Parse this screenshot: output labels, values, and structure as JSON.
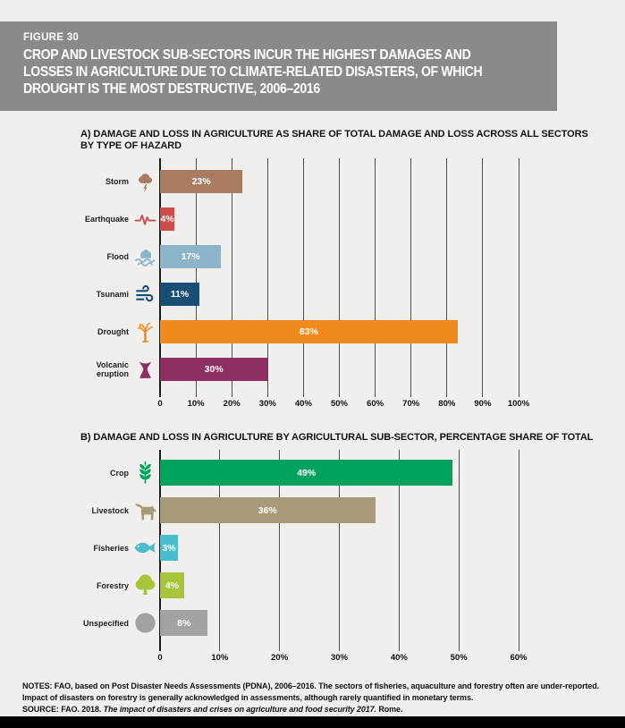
{
  "page": {
    "background": "#f0efee",
    "bottom_bar_color": "#000000"
  },
  "header": {
    "figure_label": "FIGURE 30",
    "title": "CROP AND LIVESTOCK SUB-SECTORS INCUR THE HIGHEST DAMAGES AND LOSSES IN AGRICULTURE DUE TO CLIMATE-RELATED DISASTERS, OF WHICH DROUGHT IS THE MOST DESTRUCTIVE, 2006–2016",
    "background": "#8a8a8a",
    "text_color": "#ffffff"
  },
  "chart_data": [
    {
      "type": "bar",
      "orientation": "horizontal",
      "title": "A) DAMAGE AND LOSS IN AGRICULTURE AS SHARE OF TOTAL DAMAGE AND LOSS ACROSS ALL SECTORS BY TYPE OF HAZARD",
      "title_lines": [
        "A) DAMAGE AND LOSS IN AGRICULTURE AS SHARE OF TOTAL DAMAGE AND LOSS ACROSS ALL SECTORS",
        "BY TYPE OF HAZARD"
      ],
      "categories": [
        "Storm",
        "Earthquake",
        "Flood",
        "Tsunami",
        "Drought",
        "Volcanic eruption"
      ],
      "values": [
        23,
        4,
        17,
        11,
        83,
        30
      ],
      "value_labels": [
        "23%",
        "4%",
        "17%",
        "11%",
        "83%",
        "30%"
      ],
      "colors": [
        "#a97c61",
        "#cd4b49",
        "#8bb4c9",
        "#1a4f75",
        "#f18a1d",
        "#8d2f63"
      ],
      "icons": [
        "storm-icon",
        "earthquake-icon",
        "flood-icon",
        "tsunami-icon",
        "drought-icon",
        "volcano-icon"
      ],
      "xlim": [
        0,
        100
      ],
      "ticks": [
        "0",
        "10%",
        "20%",
        "30%",
        "40%",
        "50%",
        "60%",
        "70%",
        "80%",
        "90%",
        "100%"
      ],
      "grid": "vertical gridlines at every 10%, zero line emphasized"
    },
    {
      "type": "bar",
      "orientation": "horizontal",
      "title": "B) DAMAGE AND LOSS IN AGRICULTURE BY AGRICULTURAL SUB-SECTOR, PERCENTAGE SHARE OF TOTAL",
      "title_lines": [
        "B) DAMAGE AND LOSS IN AGRICULTURE BY AGRICULTURAL SUB-SECTOR, PERCENTAGE SHARE OF TOTAL"
      ],
      "categories": [
        "Crop",
        "Livestock",
        "Fisheries",
        "Forestry",
        "Unspecified"
      ],
      "values": [
        49,
        36,
        3,
        4,
        8
      ],
      "value_labels": [
        "49%",
        "36%",
        "3%",
        "4%",
        "8%"
      ],
      "colors": [
        "#00a35d",
        "#a89a79",
        "#4bbccb",
        "#a6c53a",
        "#a2a2a2"
      ],
      "icons": [
        "crop-icon",
        "livestock-icon",
        "fish-icon",
        "tree-icon",
        "circle-icon"
      ],
      "xlim": [
        0,
        60
      ],
      "ticks": [
        "0",
        "10%",
        "20%",
        "30%",
        "40%",
        "50%",
        "60%"
      ],
      "grid": "vertical gridlines at every 10%, zero line emphasized"
    }
  ],
  "notes": {
    "notes_text": "NOTES: FAO, based on Post Disaster Needs Assessments (PDNA), 2006–2016. The sectors of fisheries, aquaculture and forestry often are under-reported. Impact of disasters on forestry is generally acknowledged in assessments, although rarely quantified in monetary terms.",
    "source_prefix": "SOURCE: FAO. 2018. ",
    "source_italic": "The impact of disasters and crises on agriculture and food security 2017.",
    "source_suffix": " Rome."
  }
}
